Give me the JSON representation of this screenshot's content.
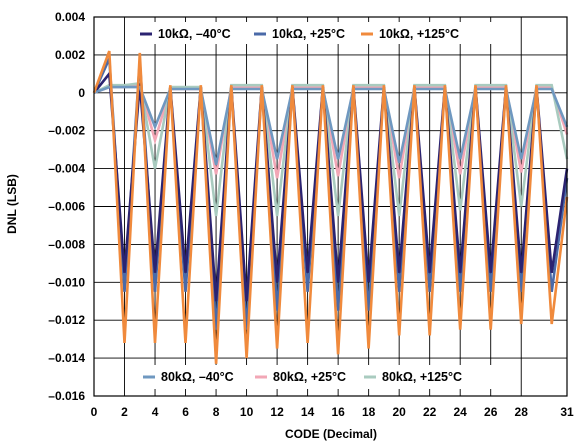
{
  "chart_data": {
    "type": "line",
    "xlabel": "CODE (Decimal)",
    "ylabel": "DNL (LSB)",
    "xlim": [
      0,
      31
    ],
    "ylim": [
      -0.016,
      0.004
    ],
    "x_ticks": [
      0,
      2,
      4,
      6,
      8,
      10,
      12,
      14,
      16,
      18,
      20,
      22,
      24,
      26,
      28,
      31
    ],
    "x_tick_labels": [
      "0",
      "2",
      "4",
      "6",
      "8",
      "10",
      "12",
      "14",
      "16",
      "18",
      "20",
      "22",
      "24",
      "26",
      "28",
      "31"
    ],
    "y_ticks": [
      0.004,
      0.002,
      0,
      -0.002,
      -0.004,
      -0.006,
      -0.008,
      -0.01,
      -0.012,
      -0.014,
      -0.016
    ],
    "y_tick_labels": [
      "0.004",
      "0.002",
      "0",
      "–0.002",
      "–0.004",
      "–0.006",
      "–0.008",
      "–0.010",
      "–0.012",
      "–0.014",
      "–0.016"
    ],
    "grid": true,
    "legends": [
      {
        "position": "top",
        "entries": [
          "10kΩ, –40°C",
          "10kΩ, +25°C",
          "10kΩ, +125°C"
        ]
      },
      {
        "position": "bottom",
        "entries": [
          "80kΩ, –40°C",
          "80kΩ, +25°C",
          "80kΩ, +125°C"
        ]
      }
    ],
    "x": [
      0,
      1,
      2,
      3,
      4,
      5,
      6,
      7,
      8,
      9,
      10,
      11,
      12,
      13,
      14,
      15,
      16,
      17,
      18,
      19,
      20,
      21,
      22,
      23,
      24,
      25,
      26,
      27,
      28,
      29,
      30,
      31
    ],
    "series": [
      {
        "name": "80kΩ, +25°C",
        "color": "#f2a7b6",
        "values": [
          0,
          0.0003,
          0.0003,
          0.0004,
          -0.0025,
          0.0002,
          0.0002,
          0.0002,
          -0.0043,
          0.0003,
          0.0003,
          0.0003,
          -0.0045,
          0.0003,
          0.0003,
          0.0003,
          -0.0044,
          0.0003,
          0.0003,
          0.0003,
          -0.0045,
          0.0003,
          0.0003,
          0.0003,
          -0.0043,
          0.0003,
          0.0003,
          0.0003,
          -0.0042,
          0.0003,
          0.0003,
          -0.0022
        ]
      },
      {
        "name": "80kΩ, +125°C",
        "color": "#a9cbbf",
        "values": [
          0,
          0.0004,
          0.0004,
          0.0005,
          -0.004,
          0.0003,
          0.0003,
          0.0003,
          -0.0065,
          0.0004,
          0.0004,
          0.0004,
          -0.0065,
          0.0004,
          0.0004,
          0.0004,
          -0.0065,
          0.0004,
          0.0004,
          0.0004,
          -0.0065,
          0.0004,
          0.0004,
          0.0004,
          -0.0062,
          0.0004,
          0.0004,
          0.0004,
          -0.006,
          0.0004,
          0.0004,
          -0.0035
        ]
      },
      {
        "name": "10kΩ, +25°C",
        "color": "#4a6aa8",
        "values": [
          0,
          0.0018,
          -0.0105,
          0.0017,
          -0.0105,
          0.0003,
          -0.0105,
          0.0003,
          -0.0125,
          0.0003,
          -0.0125,
          0.0003,
          -0.0115,
          0.0003,
          -0.0105,
          0.0003,
          -0.0115,
          0.0003,
          -0.0115,
          0.0003,
          -0.0105,
          0.0003,
          -0.0105,
          0.0003,
          -0.0105,
          0.0003,
          -0.0105,
          0.0003,
          -0.0105,
          0.0003,
          -0.0105,
          -0.0045
        ]
      },
      {
        "name": "10kΩ, –40°C",
        "color": "#2b2371",
        "values": [
          0,
          0.001,
          -0.0095,
          0.0005,
          -0.0095,
          0.0003,
          -0.0095,
          0.0003,
          -0.011,
          0.0003,
          -0.011,
          0.0003,
          -0.01,
          0.0003,
          -0.0095,
          0.0003,
          -0.01,
          0.0003,
          -0.01,
          0.0003,
          -0.0095,
          0.0003,
          -0.0095,
          0.0003,
          -0.0095,
          0.0003,
          -0.0095,
          0.0003,
          -0.0095,
          0.0003,
          -0.0095,
          -0.004
        ]
      },
      {
        "name": "80kΩ, –40°C",
        "color": "#6f98c0",
        "values": [
          0,
          0.0003,
          0.0003,
          0.0003,
          -0.0018,
          0.0002,
          0.0002,
          0.0002,
          -0.0038,
          0.0002,
          0.0002,
          0.0002,
          -0.0035,
          0.0002,
          0.0002,
          0.0002,
          -0.0035,
          0.0002,
          0.0002,
          0.0002,
          -0.0037,
          0.0002,
          0.0002,
          0.0002,
          -0.0035,
          0.0002,
          0.0002,
          0.0002,
          -0.0035,
          0.0002,
          0.0002,
          -0.0018
        ]
      },
      {
        "name": "10kΩ, +125°C",
        "color": "#f08a3c",
        "values": [
          0,
          0.0022,
          -0.0132,
          0.0021,
          -0.0132,
          0.0004,
          -0.0132,
          0.0004,
          -0.0143,
          0.0004,
          -0.014,
          0.0004,
          -0.0135,
          0.0004,
          -0.0132,
          0.0004,
          -0.0138,
          0.0004,
          -0.0135,
          0.0004,
          -0.0128,
          0.0004,
          -0.0128,
          0.0004,
          -0.0125,
          0.0004,
          -0.0125,
          0.0004,
          -0.0122,
          0.0004,
          -0.0122,
          -0.0055
        ]
      }
    ]
  }
}
